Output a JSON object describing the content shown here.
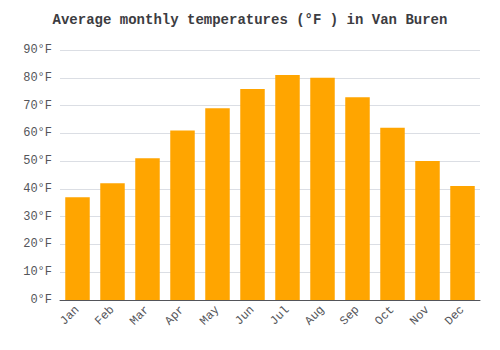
{
  "chart_data": {
    "type": "bar",
    "title": "Average monthly temperatures (°F ) in Van Buren",
    "categories": [
      "Jan",
      "Feb",
      "Mar",
      "Apr",
      "May",
      "Jun",
      "Jul",
      "Aug",
      "Sep",
      "Oct",
      "Nov",
      "Dec"
    ],
    "values": [
      37,
      42,
      51,
      61,
      69,
      76,
      81,
      80,
      73,
      62,
      50,
      41
    ],
    "color": "#FFA500",
    "ylim": [
      0,
      90
    ],
    "yticks": [
      {
        "value": 0,
        "label": "0°F"
      },
      {
        "value": 10,
        "label": "10°F"
      },
      {
        "value": 20,
        "label": "20°F"
      },
      {
        "value": 30,
        "label": "30°F"
      },
      {
        "value": 40,
        "label": "40°F"
      },
      {
        "value": 50,
        "label": "50°F"
      },
      {
        "value": 60,
        "label": "60°F"
      },
      {
        "value": 70,
        "label": "70°F"
      },
      {
        "value": 80,
        "label": "80°F"
      },
      {
        "value": 90,
        "label": "90°F"
      }
    ],
    "grid": true
  }
}
